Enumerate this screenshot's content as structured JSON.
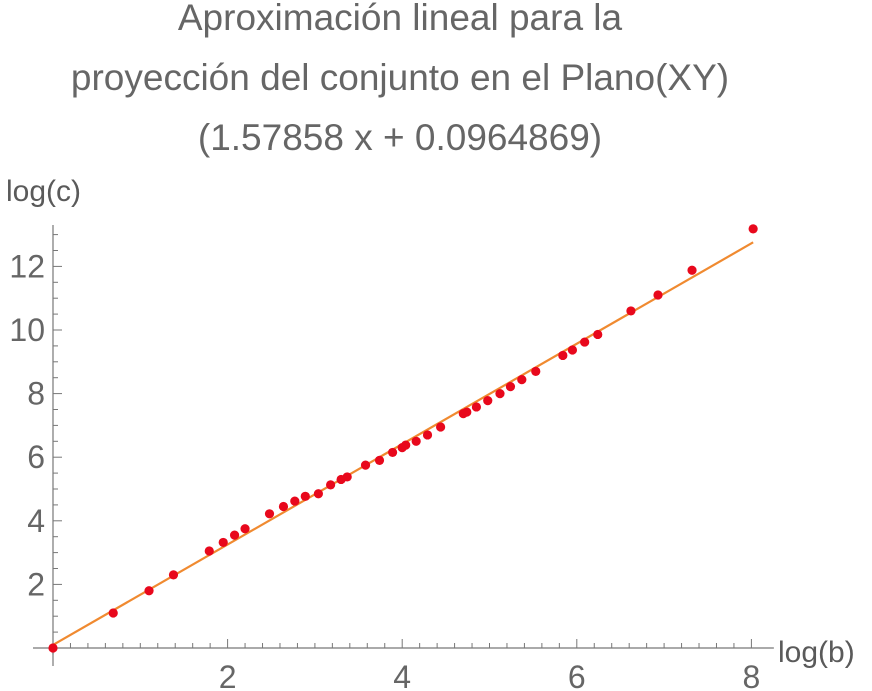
{
  "chart_data": {
    "type": "scatter",
    "title_lines": [
      "Aproximación lineal para la",
      "proyección del conjunto en el Plano(XY)",
      "(1.57858 x + 0.0964869)"
    ],
    "xlabel": "log(b)",
    "ylabel": "log(c)",
    "xlim": [
      0,
      8.2
    ],
    "ylim": [
      -0.2,
      13.3
    ],
    "x_ticks": [
      2,
      4,
      6,
      8
    ],
    "y_ticks": [
      2,
      4,
      6,
      8,
      10,
      12
    ],
    "x_tick_labels": [
      "2",
      "4",
      "6",
      "8"
    ],
    "y_tick_labels": [
      "2",
      "4",
      "6",
      "8",
      "10",
      "12"
    ],
    "grid": false,
    "colors": {
      "points": "#e8081c",
      "fit_line": "#f08a30",
      "axis": "#777777",
      "text": "#5a5a5a"
    },
    "fit_line": {
      "slope": 1.57858,
      "intercept": 0.0964869,
      "x_range": [
        0,
        8.02
      ]
    },
    "series": [
      {
        "points": [
          [
            0.0,
            0.0
          ],
          [
            0.69,
            1.1
          ],
          [
            1.1,
            1.8
          ],
          [
            1.38,
            2.3
          ],
          [
            1.79,
            3.05
          ],
          [
            1.95,
            3.32
          ],
          [
            2.08,
            3.55
          ],
          [
            2.2,
            3.75
          ],
          [
            2.48,
            4.22
          ],
          [
            2.64,
            4.45
          ],
          [
            2.77,
            4.62
          ],
          [
            2.89,
            4.77
          ],
          [
            3.04,
            4.85
          ],
          [
            3.18,
            5.13
          ],
          [
            3.3,
            5.3
          ],
          [
            3.37,
            5.38
          ],
          [
            3.58,
            5.75
          ],
          [
            3.74,
            5.9
          ],
          [
            3.89,
            6.15
          ],
          [
            4.0,
            6.3
          ],
          [
            4.04,
            6.38
          ],
          [
            4.16,
            6.5
          ],
          [
            4.29,
            6.7
          ],
          [
            4.44,
            6.95
          ],
          [
            4.7,
            7.37
          ],
          [
            4.74,
            7.42
          ],
          [
            4.85,
            7.58
          ],
          [
            4.98,
            7.78
          ],
          [
            5.12,
            8.0
          ],
          [
            5.24,
            8.22
          ],
          [
            5.37,
            8.44
          ],
          [
            5.53,
            8.7
          ],
          [
            5.84,
            9.2
          ],
          [
            5.95,
            9.37
          ],
          [
            6.09,
            9.62
          ],
          [
            6.24,
            9.86
          ],
          [
            6.62,
            10.6
          ],
          [
            6.93,
            11.1
          ],
          [
            7.32,
            11.88
          ],
          [
            8.02,
            13.18
          ]
        ]
      }
    ]
  }
}
